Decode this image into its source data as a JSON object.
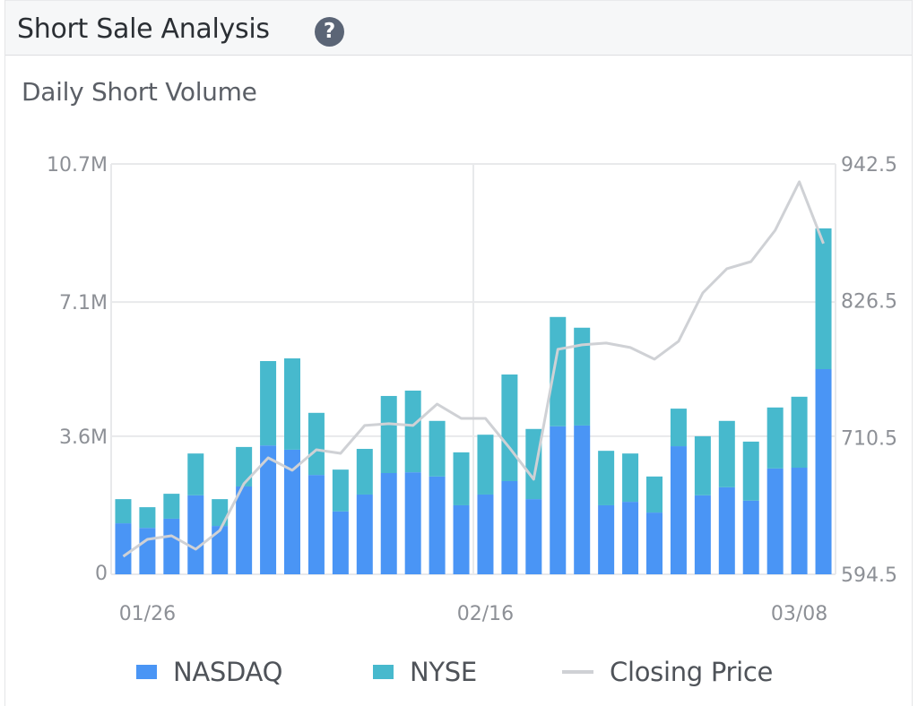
{
  "header": {
    "title": "Short Sale Analysis",
    "help_icon": "question-circle-icon",
    "help_glyph": "?"
  },
  "colors": {
    "nasdaq": "#4a95f5",
    "nyse": "#47b9cd",
    "closing_price": "#cfd1d5",
    "grid": "#e8e9eb"
  },
  "chart_data": {
    "type": "bar",
    "stacked": true,
    "title": "Daily Short Volume",
    "xlabel": "",
    "ylabel": "",
    "x_tick_labels": [
      {
        "label": "01/26",
        "index": 1
      },
      {
        "label": "02/16",
        "index": 15
      },
      {
        "label": "03/08",
        "index": 28
      }
    ],
    "y_left_ticks": [
      "0",
      "3.6M",
      "7.1M",
      "10.7M"
    ],
    "y_left_tick_values": [
      0,
      3.6,
      7.1,
      10.7
    ],
    "y_left_unit": "M",
    "ylim": [
      0,
      10.7
    ],
    "y_right_ticks": [
      "594.5",
      "710.5",
      "826.5",
      "942.5"
    ],
    "y_right_tick_values": [
      594.5,
      710.5,
      826.5,
      942.5
    ],
    "ylim_right": [
      594.5,
      942.5
    ],
    "vertical_gridline_index": 15,
    "grid": true,
    "legend_position": "bottom",
    "series": [
      {
        "name": "NASDAQ",
        "type": "bar",
        "axis": "left",
        "values": [
          1.33,
          1.21,
          1.45,
          2.06,
          1.26,
          2.29,
          3.36,
          3.25,
          2.59,
          1.64,
          2.08,
          2.64,
          2.66,
          2.55,
          1.8,
          2.08,
          2.43,
          1.96,
          3.86,
          3.88,
          1.8,
          1.89,
          1.61,
          3.34,
          2.06,
          2.27,
          1.92,
          2.76,
          2.78,
          5.35
        ]
      },
      {
        "name": "NYSE",
        "type": "bar",
        "axis": "left",
        "values": [
          0.63,
          0.54,
          0.65,
          1.09,
          0.7,
          1.03,
          2.2,
          2.38,
          1.62,
          1.09,
          1.19,
          2.01,
          2.13,
          1.45,
          1.38,
          1.56,
          2.78,
          1.83,
          2.85,
          2.55,
          1.42,
          1.26,
          0.94,
          0.98,
          1.54,
          1.73,
          1.54,
          1.59,
          1.85,
          3.67
        ]
      },
      {
        "name": "Closing Price",
        "type": "line",
        "axis": "right",
        "values": [
          609.7,
          624.1,
          627.2,
          615.8,
          631.7,
          671.3,
          693.3,
          682.7,
          700.1,
          697.1,
          720.7,
          722.2,
          720.7,
          738.9,
          726.7,
          726.7,
          701.7,
          675.1,
          785.3,
          789.1,
          790.6,
          786.8,
          776.9,
          792.1,
          833.1,
          853.7,
          859.7,
          886.3,
          927.4,
          875.0
        ]
      }
    ]
  },
  "legend": {
    "items": [
      {
        "label": "NASDAQ"
      },
      {
        "label": "NYSE"
      },
      {
        "label": "Closing Price"
      }
    ]
  }
}
